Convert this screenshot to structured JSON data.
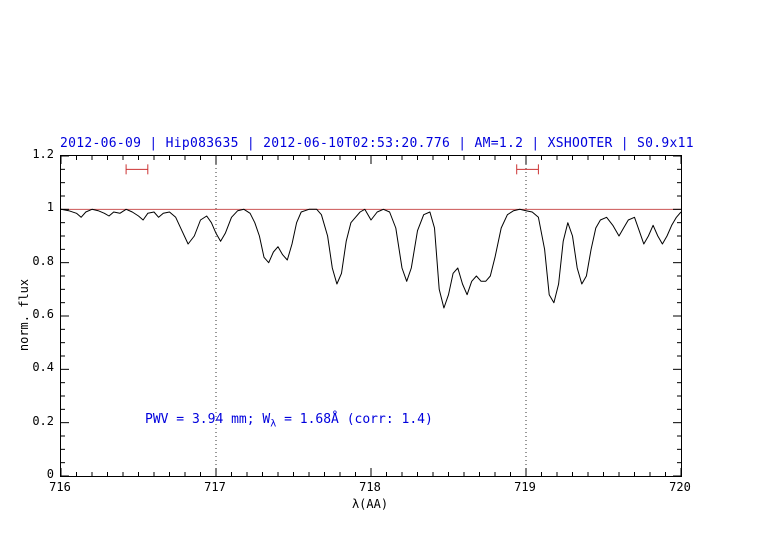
{
  "annotation": {
    "part1": "PWV = 3.94 mm; W",
    "sub": "λ",
    "part2": " = 1.68Å (corr: 1.4)"
  },
  "chart_data": {
    "type": "line",
    "title": "2012-06-09 | Hip083635 | 2012-06-10T02:53:20.776 | AM=1.2 | XSHOOTER | S0.9x11",
    "xlabel": "λ(AA)",
    "ylabel": "norm. flux",
    "xlim": [
      716,
      720
    ],
    "ylim": [
      0,
      1.2
    ],
    "xticks": [
      716,
      717,
      718,
      719,
      720
    ],
    "xtick_labels": [
      "716",
      "717",
      "718",
      "719",
      "720"
    ],
    "x_minor_step": 0.1,
    "yticks": [
      0,
      0.2,
      0.4,
      0.6,
      0.8,
      1,
      1.2
    ],
    "ytick_labels": [
      "0",
      "0.2",
      "0.4",
      "0.6",
      "0.8",
      "1",
      "1.2"
    ],
    "y_minor_step": 0.05,
    "grid_vlines_dotted": [
      717,
      719
    ],
    "reference_line_y": 1.0,
    "markers": [
      {
        "x1": 716.42,
        "x2": 716.56,
        "y": 1.15
      },
      {
        "x1": 718.94,
        "x2": 719.08,
        "y": 1.15
      }
    ],
    "colors": {
      "title": "#0000dd",
      "annotation": "#0000dd",
      "reference_line": "#cc5555",
      "marker": "#cc3333",
      "spectrum": "#000000",
      "dotted_grid": "#333333"
    },
    "series": [
      {
        "name": "spectrum",
        "x": [
          716.0,
          716.05,
          716.1,
          716.13,
          716.16,
          716.2,
          716.24,
          716.28,
          716.31,
          716.34,
          716.38,
          716.42,
          716.46,
          716.5,
          716.53,
          716.56,
          716.6,
          716.63,
          716.66,
          716.7,
          716.74,
          716.78,
          716.82,
          716.86,
          716.9,
          716.94,
          716.97,
          717.0,
          717.03,
          717.06,
          717.1,
          717.14,
          717.18,
          717.22,
          717.25,
          717.28,
          717.31,
          717.34,
          717.37,
          717.4,
          717.43,
          717.46,
          717.49,
          717.52,
          717.55,
          717.6,
          717.65,
          717.68,
          717.72,
          717.75,
          717.78,
          717.81,
          717.84,
          717.87,
          717.9,
          717.93,
          717.96,
          718.0,
          718.04,
          718.08,
          718.12,
          718.16,
          718.2,
          718.23,
          718.26,
          718.3,
          718.34,
          718.38,
          718.41,
          718.44,
          718.47,
          718.5,
          718.53,
          718.56,
          718.59,
          718.62,
          718.65,
          718.68,
          718.71,
          718.74,
          718.77,
          718.8,
          718.84,
          718.88,
          718.92,
          718.96,
          719.0,
          719.04,
          719.08,
          719.12,
          719.15,
          719.18,
          719.21,
          719.24,
          719.27,
          719.3,
          719.33,
          719.36,
          719.39,
          719.42,
          719.45,
          719.48,
          719.52,
          719.56,
          719.6,
          719.63,
          719.66,
          719.7,
          719.73,
          719.76,
          719.79,
          719.82,
          719.85,
          719.88,
          719.91,
          719.94,
          719.97,
          720.0
        ],
        "y": [
          1.0,
          0.995,
          0.985,
          0.97,
          0.99,
          1.0,
          0.995,
          0.985,
          0.975,
          0.99,
          0.985,
          1.0,
          0.99,
          0.975,
          0.96,
          0.985,
          0.99,
          0.97,
          0.985,
          0.99,
          0.97,
          0.92,
          0.87,
          0.9,
          0.96,
          0.975,
          0.95,
          0.91,
          0.88,
          0.91,
          0.97,
          0.995,
          1.0,
          0.985,
          0.95,
          0.9,
          0.82,
          0.8,
          0.84,
          0.86,
          0.83,
          0.81,
          0.87,
          0.95,
          0.99,
          1.0,
          1.0,
          0.98,
          0.9,
          0.78,
          0.72,
          0.76,
          0.88,
          0.95,
          0.97,
          0.99,
          1.0,
          0.96,
          0.99,
          1.0,
          0.99,
          0.93,
          0.78,
          0.73,
          0.78,
          0.92,
          0.98,
          0.99,
          0.93,
          0.7,
          0.63,
          0.68,
          0.76,
          0.78,
          0.72,
          0.68,
          0.73,
          0.75,
          0.73,
          0.73,
          0.75,
          0.82,
          0.93,
          0.98,
          0.995,
          1.0,
          0.995,
          0.99,
          0.97,
          0.85,
          0.68,
          0.65,
          0.72,
          0.88,
          0.95,
          0.9,
          0.78,
          0.72,
          0.75,
          0.85,
          0.93,
          0.96,
          0.97,
          0.94,
          0.9,
          0.93,
          0.96,
          0.97,
          0.92,
          0.87,
          0.9,
          0.94,
          0.9,
          0.87,
          0.9,
          0.94,
          0.97,
          0.99
        ]
      }
    ]
  }
}
